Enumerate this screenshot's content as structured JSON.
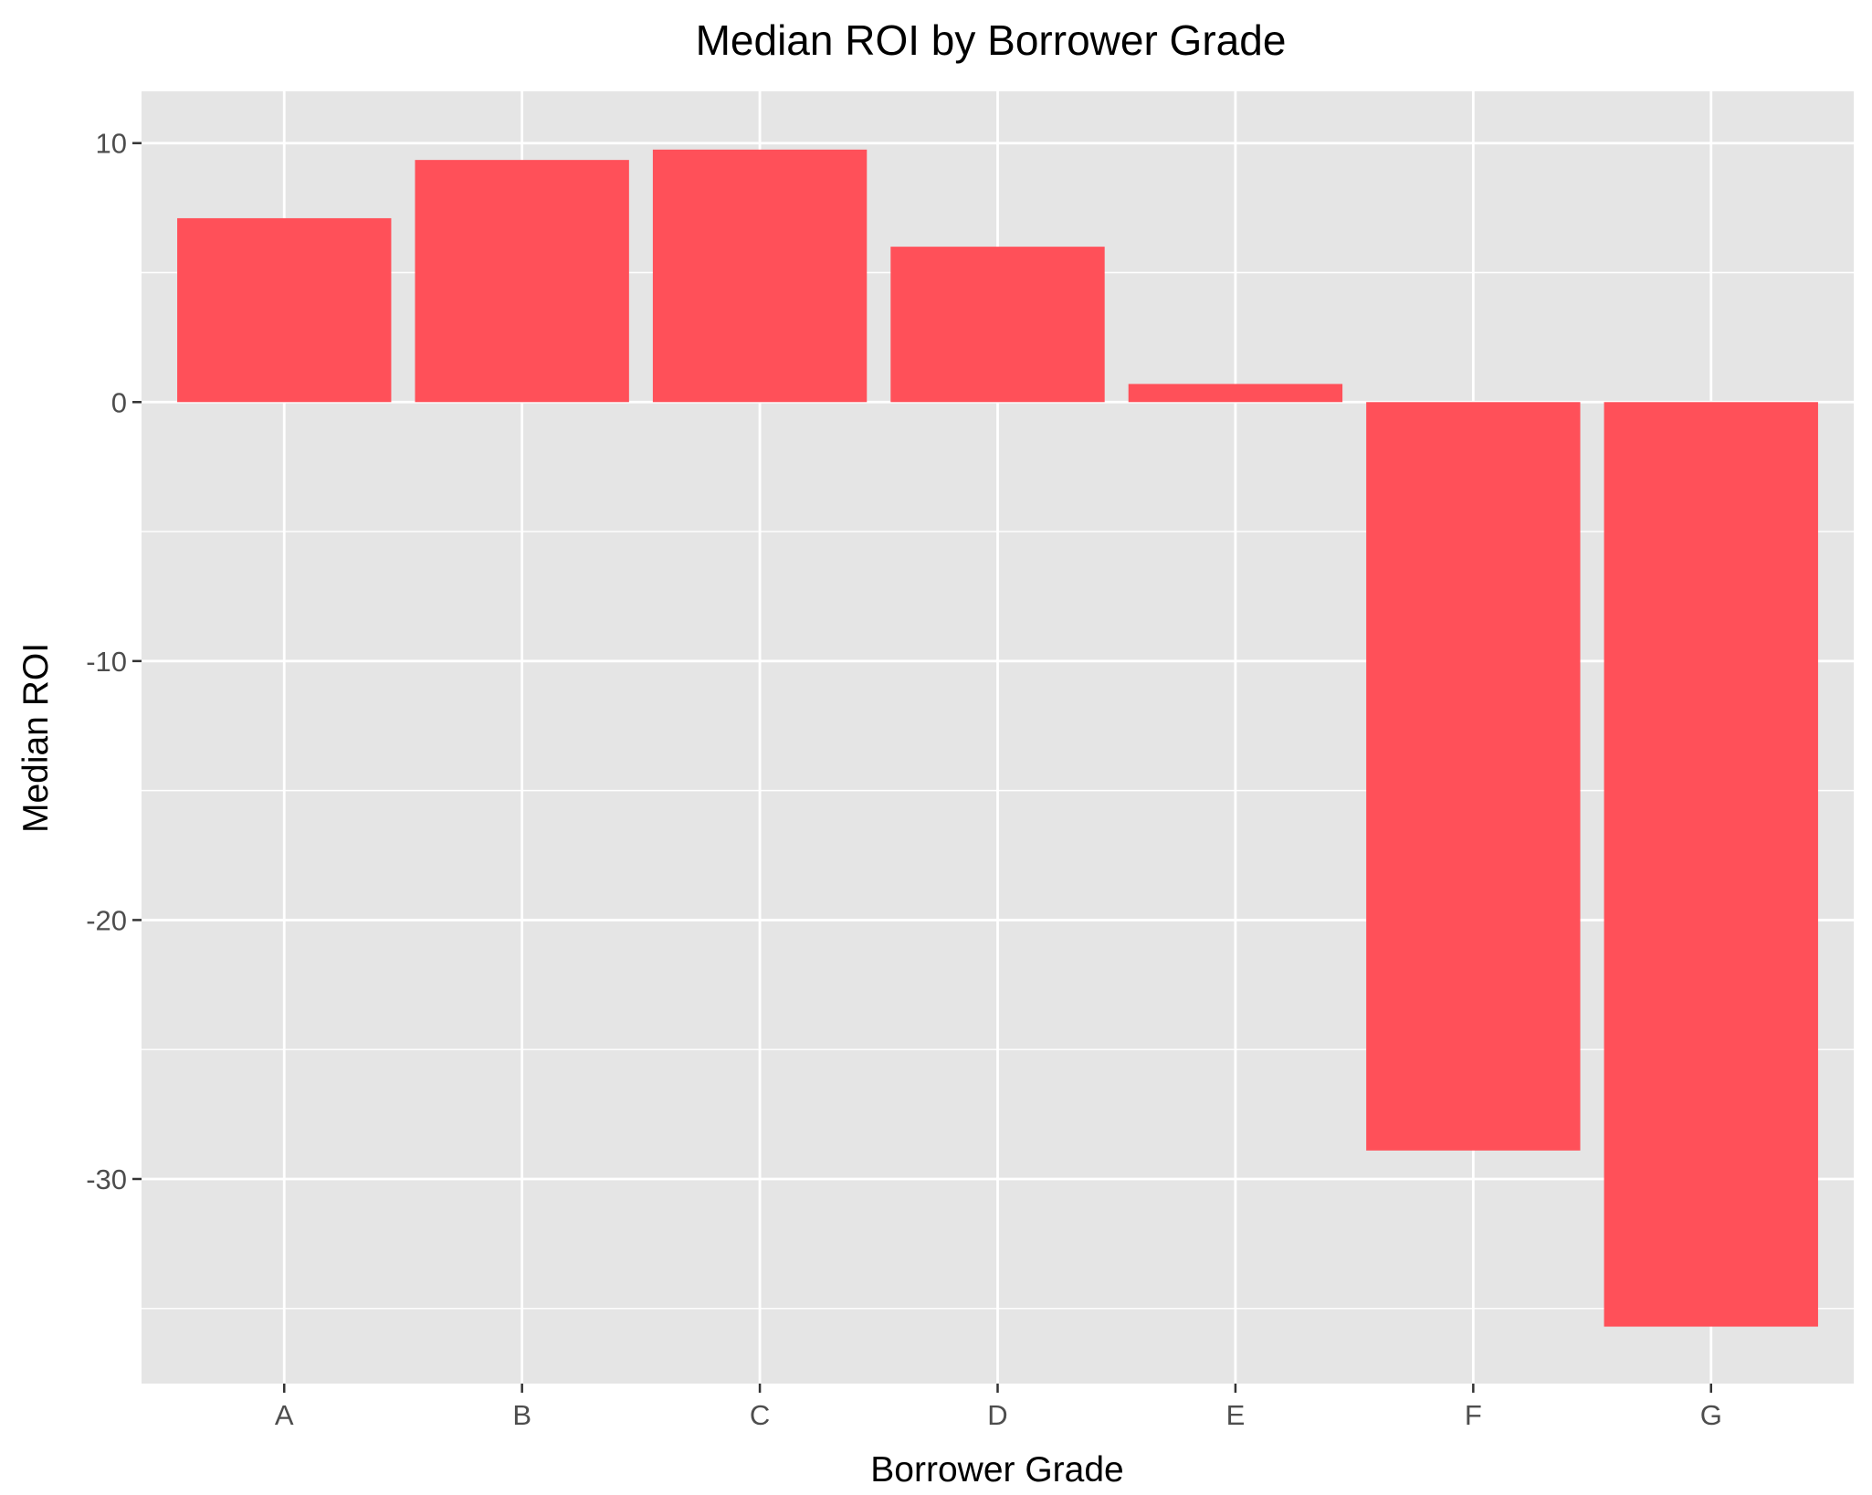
{
  "chart_data": {
    "type": "bar",
    "title": "Median ROI by Borrower Grade",
    "xlabel": "Borrower Grade",
    "ylabel": "Median ROI",
    "categories": [
      "A",
      "B",
      "C",
      "D",
      "E",
      "F",
      "G"
    ],
    "values": [
      7.1,
      9.35,
      9.75,
      6.0,
      0.7,
      -28.9,
      -35.7
    ],
    "ylim": [
      -37.9,
      12.0
    ],
    "yticks": [
      10,
      0,
      -10,
      -20,
      -30
    ],
    "ytick_labels": [
      "10",
      "0",
      "-10",
      "-20",
      "-30"
    ],
    "grid": true,
    "legend": "none",
    "colors": {
      "bar": "#FF5059",
      "panel": "#E5E5E5",
      "grid": "#FFFFFF",
      "tick_text": "#4D4D4D",
      "tick_mark": "#333333"
    }
  }
}
